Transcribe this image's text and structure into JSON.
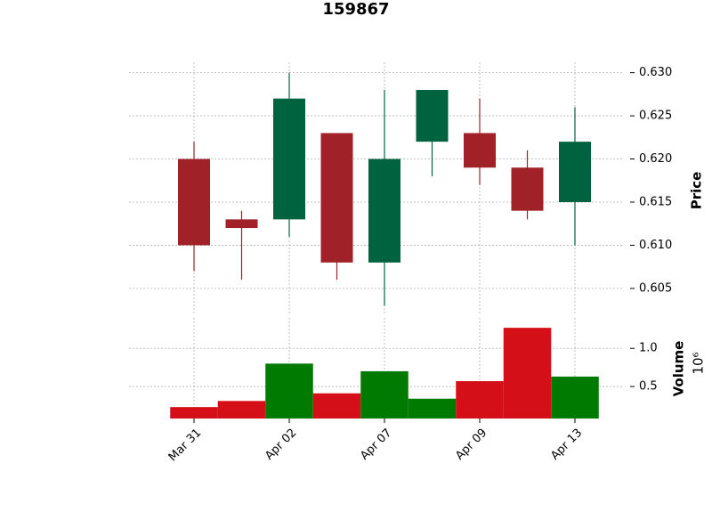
{
  "chart_data": {
    "type": "candlestick",
    "title": "159867",
    "categories": [
      "Mar 31",
      null,
      "Apr 02",
      null,
      "Apr 07",
      null,
      "Apr 09",
      null,
      "Apr 13"
    ],
    "open": [
      0.62,
      0.613,
      0.613,
      0.623,
      0.608,
      0.622,
      0.623,
      0.619,
      0.615
    ],
    "high": [
      0.622,
      0.614,
      0.63,
      0.623,
      0.628,
      0.628,
      0.627,
      0.621,
      0.626
    ],
    "low": [
      0.607,
      0.606,
      0.611,
      0.606,
      0.603,
      0.618,
      0.617,
      0.613,
      0.61
    ],
    "close": [
      0.61,
      0.612,
      0.627,
      0.608,
      0.62,
      0.628,
      0.619,
      0.614,
      0.622
    ],
    "up_color": "#006340",
    "down_color": "#a02128",
    "ylabel": "Price",
    "ylim": [
      0.6021,
      0.6312
    ],
    "yticks": [
      {
        "value": 0.605,
        "label": "0.605"
      },
      {
        "value": 0.61,
        "label": "0.610"
      },
      {
        "value": 0.615,
        "label": "0.615"
      },
      {
        "value": 0.62,
        "label": "0.620"
      },
      {
        "value": 0.625,
        "label": "0.625"
      },
      {
        "value": 0.63,
        "label": "0.630"
      }
    ],
    "grid": true,
    "volume": {
      "label": "Volume",
      "scale_label": "10⁶",
      "values": [
        0.23,
        0.31,
        0.8,
        0.41,
        0.7,
        0.34,
        0.57,
        1.27,
        0.63
      ],
      "up_color": "#007a00",
      "down_color": "#d40f17",
      "ylim": [
        0.08,
        1.4
      ],
      "yticks": [
        0.5,
        {
          "value": 1,
          "label": "1.0"
        }
      ]
    }
  }
}
